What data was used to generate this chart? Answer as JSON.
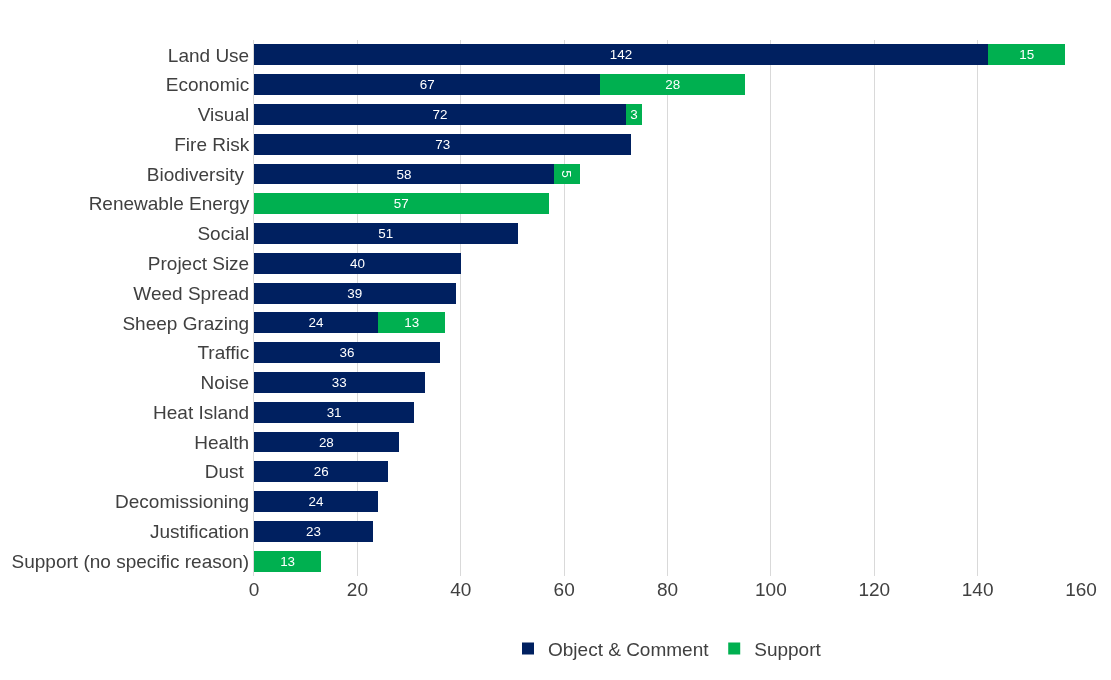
{
  "chart_data": {
    "type": "bar",
    "orientation": "horizontal",
    "stacked": true,
    "categories": [
      "Land Use",
      "Economic",
      "Visual",
      "Fire Risk",
      "Biodiversity ",
      "Renewable Energy",
      "Social",
      "Project Size",
      "Weed Spread",
      "Sheep Grazing",
      "Traffic",
      "Noise",
      "Heat Island",
      "Health",
      "Dust ",
      "Decomissioning",
      "Justification",
      "Support (no specific reason)"
    ],
    "series": [
      {
        "name": "Object & Comment",
        "color": "#002060",
        "values": [
          142,
          67,
          72,
          73,
          58,
          null,
          51,
          40,
          39,
          24,
          36,
          33,
          31,
          28,
          26,
          24,
          23,
          null
        ]
      },
      {
        "name": "Support",
        "color": "#00b050",
        "values": [
          15,
          28,
          3,
          null,
          5,
          57,
          null,
          null,
          null,
          13,
          null,
          null,
          null,
          null,
          null,
          null,
          null,
          13
        ]
      }
    ],
    "xlim": [
      0,
      160
    ],
    "xticks": [
      0,
      20,
      40,
      60,
      80,
      100,
      120,
      140,
      160
    ],
    "grid": "x",
    "legend": "bottom",
    "data_labels": true
  }
}
